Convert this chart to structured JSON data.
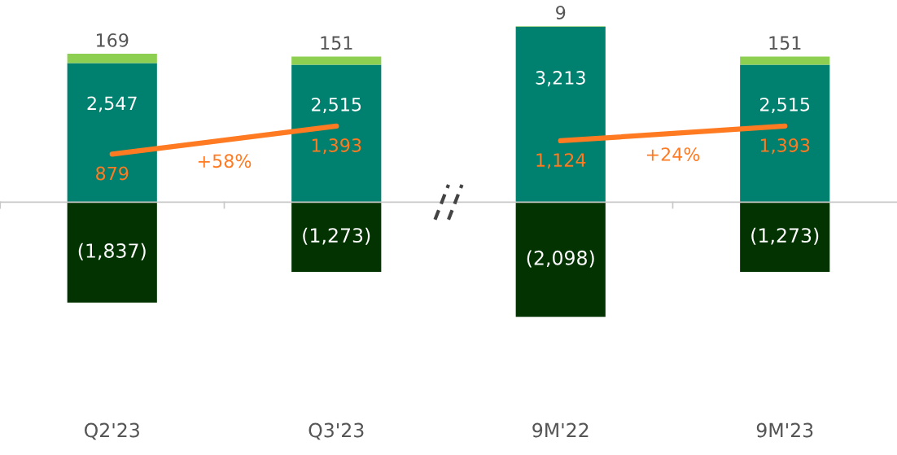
{
  "chart_data": {
    "type": "bar",
    "stacked": true,
    "categories": [
      "Q2'23",
      "Q3'23",
      "9M'22",
      "9M'23"
    ],
    "tick_labels": "x",
    "grid": false,
    "series": [
      {
        "color": "#00806f",
        "values": [
          2547,
          2515,
          3213,
          2515
        ],
        "value_labels": [
          "2,547",
          "2,515",
          "3,213",
          "2,515"
        ]
      },
      {
        "color": "#8dcf50",
        "values": [
          169,
          151,
          9,
          151
        ],
        "value_labels": [
          "169",
          "151",
          "9",
          "151"
        ]
      },
      {
        "color": "#023300",
        "values": [
          -1837,
          -1273,
          -2098,
          -1273
        ],
        "value_labels": [
          "(1,837)",
          "(1,273)",
          "(2,098)",
          "(1,273)"
        ]
      },
      {
        "type": "line",
        "color": "#ff7a21",
        "values": [
          879,
          1393,
          null,
          null
        ],
        "value_labels": [
          "879",
          "1,393",
          null,
          null
        ]
      },
      {
        "type": "line",
        "color": "#ff7a21",
        "values": [
          null,
          null,
          1124,
          1393
        ],
        "value_labels": [
          null,
          null,
          "1,124",
          "1,393"
        ]
      }
    ],
    "annotations": [
      "+58%",
      "+24%"
    ]
  }
}
